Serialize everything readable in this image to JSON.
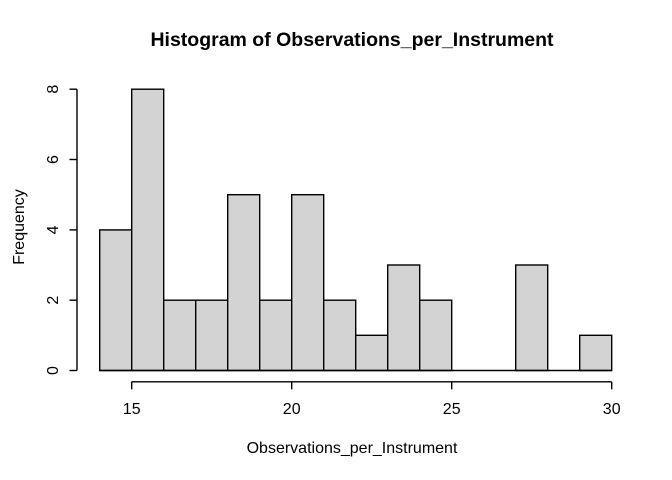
{
  "figure": {
    "background": "#ffffff"
  },
  "chart_data": {
    "type": "bar",
    "subtype": "histogram",
    "title": "Histogram of Observations_per_Instrument",
    "xlabel": "Observations_per_Instrument",
    "ylabel": "Frequency",
    "bins": {
      "breaks": [
        14,
        15,
        16,
        17,
        18,
        19,
        20,
        21,
        22,
        23,
        24,
        25,
        26,
        27,
        28,
        29,
        30
      ],
      "counts": [
        4,
        8,
        2,
        2,
        5,
        2,
        5,
        2,
        1,
        3,
        2,
        0,
        0,
        3,
        0,
        1
      ]
    },
    "x_ticks": [
      15,
      20,
      25,
      30
    ],
    "y_ticks": [
      0,
      2,
      4,
      6,
      8
    ],
    "xlim": [
      14,
      30
    ],
    "ylim": [
      0,
      8
    ],
    "grid": false,
    "legend": "none",
    "colors": {
      "bar_fill": "#d3d3d3",
      "bar_border": "#000000",
      "axis": "#000000",
      "text": "#000000"
    }
  }
}
